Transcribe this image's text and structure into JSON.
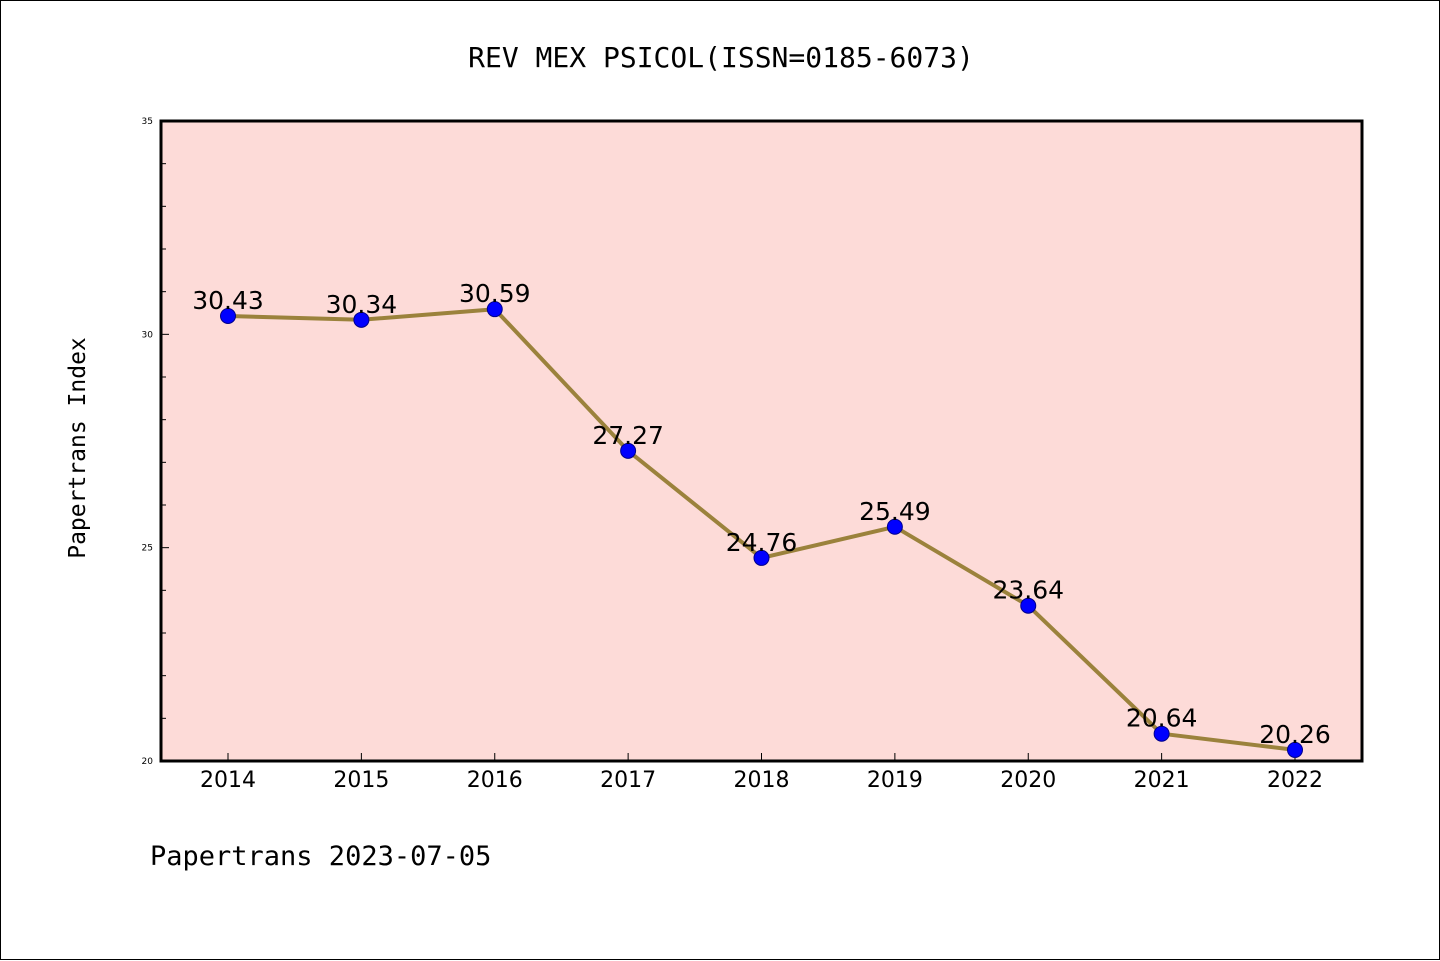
{
  "chart_data": {
    "type": "line",
    "title": "REV MEX PSICOL(ISSN=0185-6073)",
    "xlabel": "",
    "ylabel": "Papertrans Index",
    "categories": [
      "2014",
      "2015",
      "2016",
      "2017",
      "2018",
      "2019",
      "2020",
      "2021",
      "2022"
    ],
    "series": [
      {
        "values": [
          30.43,
          30.34,
          30.59,
          27.27,
          24.76,
          25.49,
          23.64,
          20.64,
          20.26
        ]
      }
    ],
    "data_labels": [
      "30.43",
      "30.34",
      "30.59",
      "27.27",
      "24.76",
      "25.49",
      "23.64",
      "20.64",
      "20.26"
    ],
    "ylim": [
      20,
      35
    ],
    "y_major_ticks": [
      "20",
      "25",
      "30",
      "35"
    ],
    "y_minor_step": 1,
    "grid": false,
    "legend": "none",
    "colors": {
      "plot_background": "#fddbd8",
      "line": "#9b823c",
      "marker": "#0000ff",
      "marker_edge": "#00008b"
    }
  },
  "footer": {
    "text": "Papertrans 2023-07-05"
  }
}
